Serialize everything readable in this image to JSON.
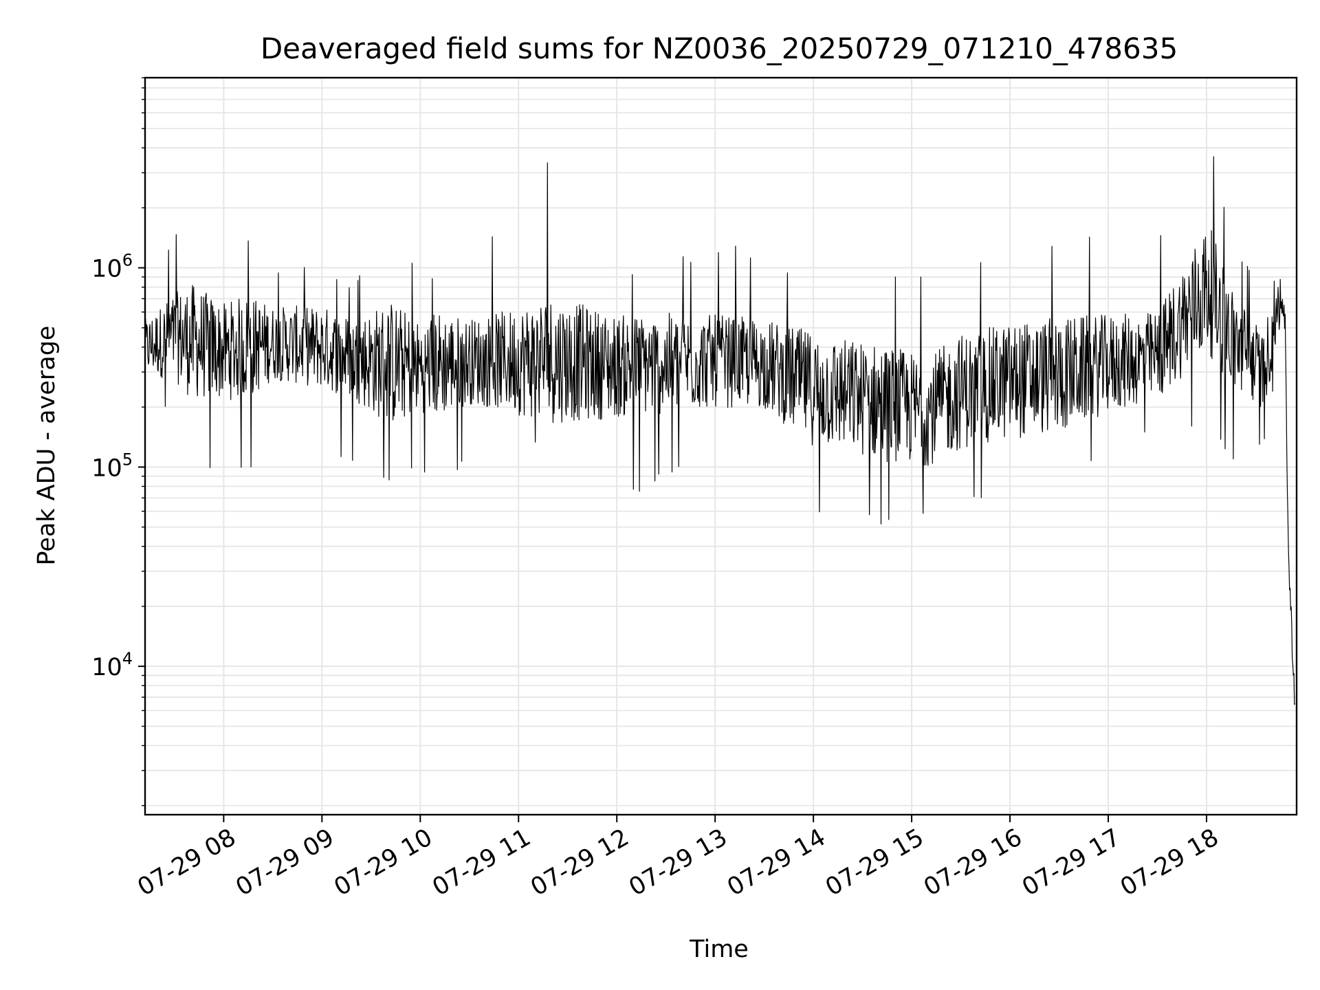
{
  "chart_data": {
    "type": "line",
    "title": "Deaveraged field sums for NZ0036_20250729_071210_478635",
    "xlabel": "Time",
    "ylabel": "Peak ADU - average",
    "yscale": "log",
    "grid": true,
    "grid_color": "#e6e6e6",
    "line_color": "#000000",
    "legend": "none",
    "x_range": [
      "2025-07-29 07:12",
      "2025-07-29 18:55"
    ],
    "ylim": [
      1800,
      9000000
    ],
    "x_ticks": [
      {
        "t": "2025-07-29 08:00",
        "label": "07-29 08"
      },
      {
        "t": "2025-07-29 09:00",
        "label": "07-29 09"
      },
      {
        "t": "2025-07-29 10:00",
        "label": "07-29 10"
      },
      {
        "t": "2025-07-29 11:00",
        "label": "07-29 11"
      },
      {
        "t": "2025-07-29 12:00",
        "label": "07-29 12"
      },
      {
        "t": "2025-07-29 13:00",
        "label": "07-29 13"
      },
      {
        "t": "2025-07-29 14:00",
        "label": "07-29 14"
      },
      {
        "t": "2025-07-29 15:00",
        "label": "07-29 15"
      },
      {
        "t": "2025-07-29 16:00",
        "label": "07-29 16"
      },
      {
        "t": "2025-07-29 17:00",
        "label": "07-29 17"
      },
      {
        "t": "2025-07-29 18:00",
        "label": "07-29 18"
      }
    ],
    "y_ticks": [
      {
        "value": 10000,
        "base": "10",
        "exp": "4"
      },
      {
        "value": 100000,
        "base": "10",
        "exp": "5"
      },
      {
        "value": 1000000,
        "base": "10",
        "exp": "6"
      }
    ],
    "series": [
      {
        "points": [
          {
            "t": "2025-07-29 07:12",
            "y": 400000,
            "low": 240000,
            "high": 1000000
          },
          {
            "t": "2025-07-29 07:30",
            "y": 450000,
            "low": 160000,
            "high": 1500000
          },
          {
            "t": "2025-07-29 07:40",
            "y": 430000,
            "low": 110000,
            "high": 2200000
          },
          {
            "t": "2025-07-29 08:00",
            "y": 380000,
            "low": 75000,
            "high": 900000
          },
          {
            "t": "2025-07-29 08:15",
            "y": 400000,
            "low": 90000,
            "high": 1400000
          },
          {
            "t": "2025-07-29 08:30",
            "y": 420000,
            "low": 150000,
            "high": 1000000
          },
          {
            "t": "2025-07-29 09:00",
            "y": 400000,
            "low": 130000,
            "high": 1100000
          },
          {
            "t": "2025-07-29 09:20",
            "y": 350000,
            "low": 95000,
            "high": 800000
          },
          {
            "t": "2025-07-29 09:42",
            "y": 330000,
            "low": 85000,
            "high": 2300000
          },
          {
            "t": "2025-07-29 10:00",
            "y": 320000,
            "low": 90000,
            "high": 900000
          },
          {
            "t": "2025-07-29 10:10",
            "y": 330000,
            "low": 60000,
            "high": 1000000
          },
          {
            "t": "2025-07-29 10:30",
            "y": 340000,
            "low": 110000,
            "high": 1000000
          },
          {
            "t": "2025-07-29 10:53",
            "y": 340000,
            "low": 140000,
            "high": 1900000
          },
          {
            "t": "2025-07-29 11:18",
            "y": 350000,
            "low": 120000,
            "high": 3400000
          },
          {
            "t": "2025-07-29 11:45",
            "y": 330000,
            "low": 55000,
            "high": 1000000
          },
          {
            "t": "2025-07-29 12:00",
            "y": 320000,
            "low": 70000,
            "high": 1000000
          },
          {
            "t": "2025-07-29 12:30",
            "y": 330000,
            "low": 80000,
            "high": 1100000
          },
          {
            "t": "2025-07-29 13:00",
            "y": 340000,
            "low": 120000,
            "high": 1300000
          },
          {
            "t": "2025-07-29 13:30",
            "y": 330000,
            "low": 130000,
            "high": 1300000
          },
          {
            "t": "2025-07-29 13:58",
            "y": 250000,
            "low": 48000,
            "high": 900000
          },
          {
            "t": "2025-07-29 14:20",
            "y": 230000,
            "low": 60000,
            "high": 1100000
          },
          {
            "t": "2025-07-29 14:44",
            "y": 210000,
            "low": 48000,
            "high": 1000000
          },
          {
            "t": "2025-07-29 15:10",
            "y": 190000,
            "low": 55000,
            "high": 900000
          },
          {
            "t": "2025-07-29 15:30",
            "y": 240000,
            "low": 60000,
            "high": 1200000
          },
          {
            "t": "2025-07-29 16:00",
            "y": 270000,
            "low": 60000,
            "high": 1200000
          },
          {
            "t": "2025-07-29 16:30",
            "y": 290000,
            "low": 75000,
            "high": 1500000
          },
          {
            "t": "2025-07-29 17:00",
            "y": 330000,
            "low": 120000,
            "high": 1500000
          },
          {
            "t": "2025-07-29 17:30",
            "y": 360000,
            "low": 150000,
            "high": 1500000
          },
          {
            "t": "2025-07-29 17:55",
            "y": 700000,
            "low": 150000,
            "high": 3700000
          },
          {
            "t": "2025-07-29 18:01",
            "y": 800000,
            "low": 200000,
            "high": 6000000
          },
          {
            "t": "2025-07-29 18:15",
            "y": 450000,
            "low": 100000,
            "high": 1400000
          },
          {
            "t": "2025-07-29 18:35",
            "y": 300000,
            "low": 130000,
            "high": 900000
          },
          {
            "t": "2025-07-29 18:45",
            "y": 750000,
            "low": 350000,
            "high": 3100000
          },
          {
            "t": "2025-07-29 18:48",
            "y": 500000,
            "low": 330000,
            "high": 900000
          },
          {
            "t": "2025-07-29 18:50",
            "y": 36000,
            "low": 30000,
            "high": 40000
          },
          {
            "t": "2025-07-29 18:52",
            "y": 15000,
            "low": 11000,
            "high": 22000
          },
          {
            "t": "2025-07-29 18:54",
            "y": 6500,
            "low": 6000,
            "high": 9000
          }
        ]
      }
    ]
  }
}
